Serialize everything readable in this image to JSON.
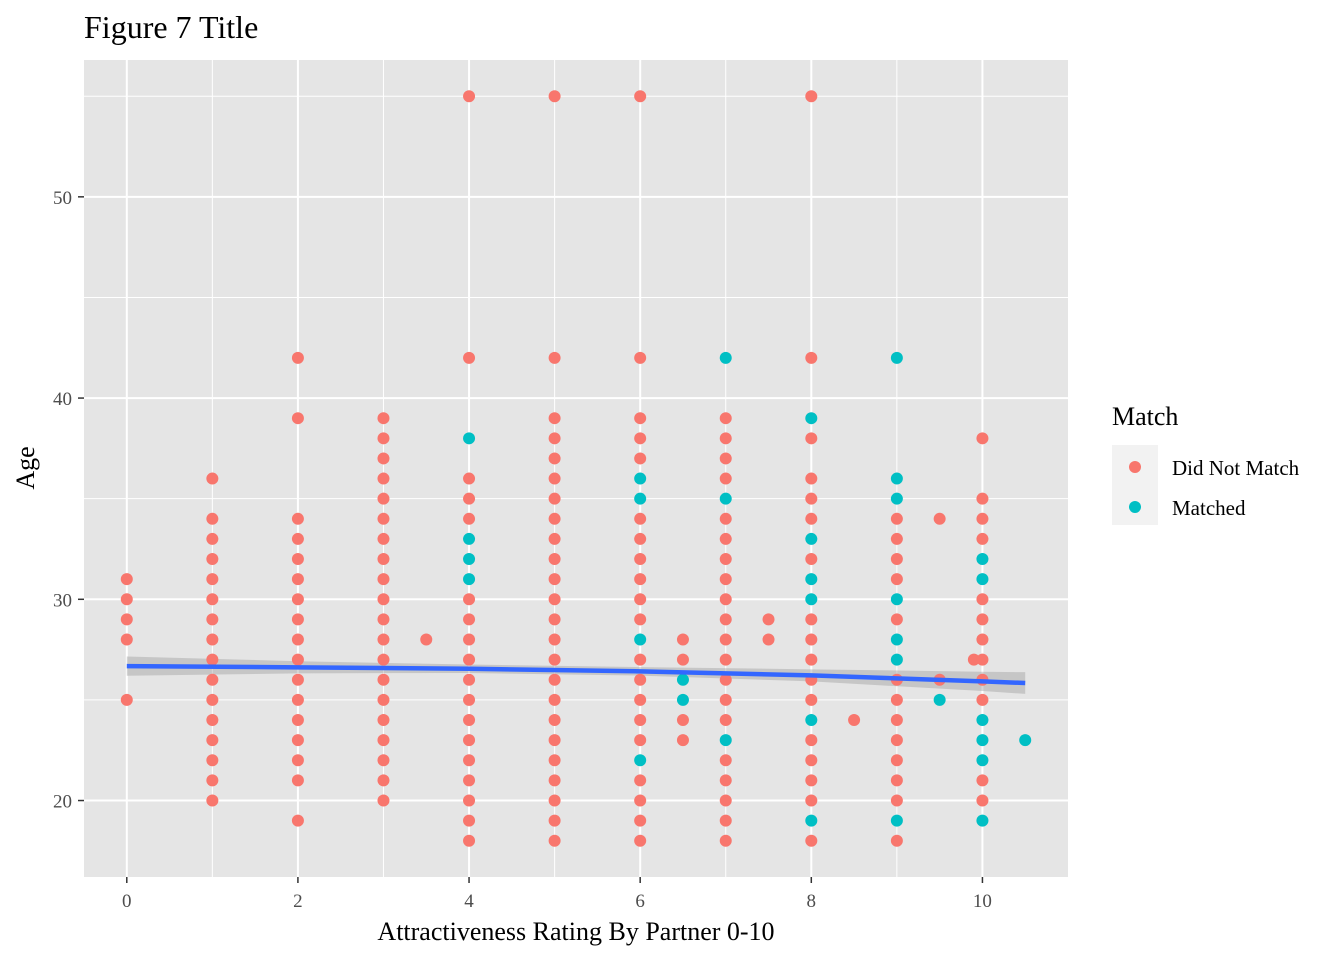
{
  "chart_data": {
    "type": "scatter",
    "title": "Figure 7 Title",
    "xlabel": "Attractiveness Rating By Partner 0-10",
    "ylabel": "Age",
    "xlim": [
      -0.5,
      11
    ],
    "ylim": [
      16.2,
      56.8
    ],
    "x_ticks": [
      0,
      2,
      4,
      6,
      8,
      10
    ],
    "y_ticks": [
      20,
      30,
      40,
      50
    ],
    "x_tick_labels": [
      "0",
      "2",
      "4",
      "6",
      "8",
      "10"
    ],
    "y_tick_labels": [
      "20",
      "30",
      "40",
      "50"
    ],
    "grid": true,
    "legend": {
      "title": "Match",
      "position": "right",
      "entries": [
        {
          "label": "Did Not Match",
          "color": "#F8766D"
        },
        {
          "label": "Matched",
          "color": "#00BFC4"
        }
      ]
    },
    "series": [
      {
        "name": "Did Not Match",
        "color": "#F8766D",
        "points": [
          [
            0,
            25
          ],
          [
            0,
            28
          ],
          [
            0,
            29
          ],
          [
            0,
            30
          ],
          [
            0,
            31
          ],
          [
            1,
            20
          ],
          [
            1,
            21
          ],
          [
            1,
            22
          ],
          [
            1,
            23
          ],
          [
            1,
            24
          ],
          [
            1,
            25
          ],
          [
            1,
            26
          ],
          [
            1,
            27
          ],
          [
            1,
            28
          ],
          [
            1,
            29
          ],
          [
            1,
            30
          ],
          [
            1,
            31
          ],
          [
            1,
            32
          ],
          [
            1,
            33
          ],
          [
            1,
            34
          ],
          [
            1,
            36
          ],
          [
            2,
            19
          ],
          [
            2,
            21
          ],
          [
            2,
            22
          ],
          [
            2,
            23
          ],
          [
            2,
            24
          ],
          [
            2,
            25
          ],
          [
            2,
            26
          ],
          [
            2,
            27
          ],
          [
            2,
            28
          ],
          [
            2,
            29
          ],
          [
            2,
            30
          ],
          [
            2,
            31
          ],
          [
            2,
            32
          ],
          [
            2,
            33
          ],
          [
            2,
            34
          ],
          [
            2,
            39
          ],
          [
            2,
            42
          ],
          [
            3,
            20
          ],
          [
            3,
            21
          ],
          [
            3,
            22
          ],
          [
            3,
            23
          ],
          [
            3,
            24
          ],
          [
            3,
            25
          ],
          [
            3,
            26
          ],
          [
            3,
            27
          ],
          [
            3,
            28
          ],
          [
            3,
            29
          ],
          [
            3,
            30
          ],
          [
            3,
            31
          ],
          [
            3,
            32
          ],
          [
            3,
            33
          ],
          [
            3,
            34
          ],
          [
            3,
            35
          ],
          [
            3,
            36
          ],
          [
            3,
            37
          ],
          [
            3,
            38
          ],
          [
            3,
            39
          ],
          [
            3.5,
            28
          ],
          [
            4,
            18
          ],
          [
            4,
            19
          ],
          [
            4,
            20
          ],
          [
            4,
            21
          ],
          [
            4,
            22
          ],
          [
            4,
            23
          ],
          [
            4,
            24
          ],
          [
            4,
            25
          ],
          [
            4,
            26
          ],
          [
            4,
            27
          ],
          [
            4,
            28
          ],
          [
            4,
            29
          ],
          [
            4,
            30
          ],
          [
            4,
            34
          ],
          [
            4,
            35
          ],
          [
            4,
            36
          ],
          [
            4,
            42
          ],
          [
            4,
            55
          ],
          [
            5,
            18
          ],
          [
            5,
            19
          ],
          [
            5,
            20
          ],
          [
            5,
            21
          ],
          [
            5,
            22
          ],
          [
            5,
            23
          ],
          [
            5,
            24
          ],
          [
            5,
            25
          ],
          [
            5,
            26
          ],
          [
            5,
            27
          ],
          [
            5,
            28
          ],
          [
            5,
            29
          ],
          [
            5,
            30
          ],
          [
            5,
            31
          ],
          [
            5,
            32
          ],
          [
            5,
            33
          ],
          [
            5,
            34
          ],
          [
            5,
            35
          ],
          [
            5,
            36
          ],
          [
            5,
            37
          ],
          [
            5,
            38
          ],
          [
            5,
            39
          ],
          [
            5,
            42
          ],
          [
            5,
            55
          ],
          [
            6,
            18
          ],
          [
            6,
            19
          ],
          [
            6,
            20
          ],
          [
            6,
            21
          ],
          [
            6,
            23
          ],
          [
            6,
            24
          ],
          [
            6,
            25
          ],
          [
            6,
            26
          ],
          [
            6,
            27
          ],
          [
            6,
            29
          ],
          [
            6,
            30
          ],
          [
            6,
            31
          ],
          [
            6,
            32
          ],
          [
            6,
            33
          ],
          [
            6,
            34
          ],
          [
            6,
            37
          ],
          [
            6,
            38
          ],
          [
            6,
            39
          ],
          [
            6,
            42
          ],
          [
            6,
            55
          ],
          [
            6.5,
            23
          ],
          [
            6.5,
            24
          ],
          [
            6.5,
            27
          ],
          [
            6.5,
            28
          ],
          [
            7,
            18
          ],
          [
            7,
            19
          ],
          [
            7,
            20
          ],
          [
            7,
            21
          ],
          [
            7,
            22
          ],
          [
            7,
            24
          ],
          [
            7,
            25
          ],
          [
            7,
            26
          ],
          [
            7,
            27
          ],
          [
            7,
            28
          ],
          [
            7,
            29
          ],
          [
            7,
            30
          ],
          [
            7,
            31
          ],
          [
            7,
            32
          ],
          [
            7,
            33
          ],
          [
            7,
            34
          ],
          [
            7,
            36
          ],
          [
            7,
            37
          ],
          [
            7,
            38
          ],
          [
            7,
            39
          ],
          [
            7.5,
            28
          ],
          [
            7.5,
            29
          ],
          [
            8,
            18
          ],
          [
            8,
            20
          ],
          [
            8,
            21
          ],
          [
            8,
            22
          ],
          [
            8,
            23
          ],
          [
            8,
            25
          ],
          [
            8,
            26
          ],
          [
            8,
            27
          ],
          [
            8,
            28
          ],
          [
            8,
            29
          ],
          [
            8,
            32
          ],
          [
            8,
            34
          ],
          [
            8,
            35
          ],
          [
            8,
            36
          ],
          [
            8,
            38
          ],
          [
            8,
            42
          ],
          [
            8,
            55
          ],
          [
            8.5,
            24
          ],
          [
            9,
            18
          ],
          [
            9,
            20
          ],
          [
            9,
            21
          ],
          [
            9,
            22
          ],
          [
            9,
            23
          ],
          [
            9,
            24
          ],
          [
            9,
            25
          ],
          [
            9,
            26
          ],
          [
            9,
            29
          ],
          [
            9,
            31
          ],
          [
            9,
            32
          ],
          [
            9,
            33
          ],
          [
            9,
            34
          ],
          [
            9.5,
            26
          ],
          [
            9.5,
            34
          ],
          [
            9.9,
            27
          ],
          [
            10,
            20
          ],
          [
            10,
            21
          ],
          [
            10,
            25
          ],
          [
            10,
            26
          ],
          [
            10,
            27
          ],
          [
            10,
            28
          ],
          [
            10,
            29
          ],
          [
            10,
            30
          ],
          [
            10,
            33
          ],
          [
            10,
            34
          ],
          [
            10,
            35
          ],
          [
            10,
            38
          ]
        ]
      },
      {
        "name": "Matched",
        "color": "#00BFC4",
        "points": [
          [
            4,
            31
          ],
          [
            4,
            32
          ],
          [
            4,
            33
          ],
          [
            4,
            38
          ],
          [
            6,
            22
          ],
          [
            6,
            28
          ],
          [
            6,
            35
          ],
          [
            6,
            36
          ],
          [
            6.5,
            25
          ],
          [
            6.5,
            26
          ],
          [
            7,
            23
          ],
          [
            7,
            35
          ],
          [
            7,
            42
          ],
          [
            8,
            19
          ],
          [
            8,
            24
          ],
          [
            8,
            30
          ],
          [
            8,
            31
          ],
          [
            8,
            33
          ],
          [
            8,
            39
          ],
          [
            9,
            19
          ],
          [
            9,
            27
          ],
          [
            9,
            28
          ],
          [
            9,
            30
          ],
          [
            9,
            35
          ],
          [
            9,
            36
          ],
          [
            9,
            42
          ],
          [
            9.5,
            25
          ],
          [
            10,
            19
          ],
          [
            10,
            22
          ],
          [
            10,
            23
          ],
          [
            10,
            24
          ],
          [
            10,
            31
          ],
          [
            10,
            32
          ],
          [
            10.5,
            23
          ]
        ]
      }
    ],
    "trend_line": {
      "color": "#3366FF",
      "points": [
        [
          0,
          26.68
        ],
        [
          2,
          26.62
        ],
        [
          4,
          26.55
        ],
        [
          6,
          26.42
        ],
        [
          8,
          26.22
        ],
        [
          10,
          25.92
        ],
        [
          10.5,
          25.84
        ]
      ]
    }
  }
}
